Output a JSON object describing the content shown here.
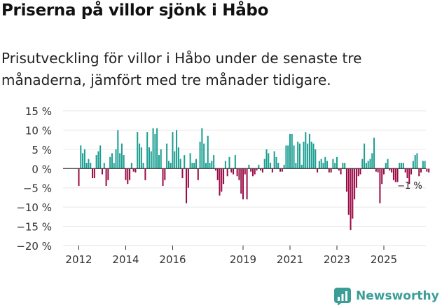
{
  "header": {
    "title": "Priserna på villor sjönk i Håbo",
    "subtitle": "Prisutveckling för villor i Håbo under de senaste tre månaderna, jämfört med tre månader tidigare."
  },
  "brand": {
    "name": "Newsworthy",
    "color": "#3a9e97"
  },
  "colors": {
    "positive": "#1a9e91",
    "negative": "#9b0a46",
    "grid": "#e6e6e6",
    "axis": "#333333"
  },
  "chart_data": {
    "type": "bar",
    "title": "Priserna på villor sjönk i Håbo",
    "xlabel": "",
    "ylabel": "",
    "ylim": [
      -20,
      15
    ],
    "yticks": [
      15,
      10,
      5,
      0,
      -5,
      -10,
      -15,
      -20
    ],
    "ytick_labels": [
      "15 %",
      "10 %",
      "5 %",
      "0 %",
      "−5 %",
      "−10 %",
      "−15 %",
      "−20 %"
    ],
    "x_start": 2012.0,
    "x_step": 0.0833333,
    "xticks": [
      2012,
      2014,
      2016,
      2019,
      2021,
      2023,
      2025
    ],
    "xtick_labels": [
      "2012",
      "2014",
      "2016",
      "2019",
      "2021",
      "2023",
      "2025"
    ],
    "annotation": {
      "text": "−1 %",
      "index": 170
    },
    "values": [
      -4.5,
      6.0,
      4.0,
      5.0,
      1.5,
      2.5,
      1.5,
      -2.5,
      -2.5,
      3.5,
      4.5,
      6.0,
      -1.5,
      1.5,
      -4.5,
      -3.0,
      3.0,
      4.0,
      1.5,
      5.0,
      10.0,
      4.0,
      6.5,
      3.5,
      -3.0,
      -4.0,
      -3.0,
      1.5,
      -0.8,
      -1.0,
      9.5,
      6.5,
      5.5,
      1.5,
      -3.0,
      9.5,
      5.5,
      4.5,
      10.5,
      9.0,
      10.5,
      3.5,
      5.0,
      -4.5,
      -3.0,
      6.5,
      2.0,
      1.5,
      9.5,
      4.5,
      10.0,
      5.5,
      2.5,
      -2.5,
      3.5,
      -9.0,
      -5.0,
      4.0,
      1.5,
      1.5,
      2.5,
      -3.0,
      7.0,
      10.5,
      6.5,
      1.5,
      8.5,
      1.5,
      2.0,
      3.5,
      -0.5,
      -3.0,
      -7.0,
      -6.0,
      -4.0,
      2.0,
      -2.0,
      3.0,
      -1.0,
      -1.5,
      3.5,
      -2.0,
      -3.0,
      -6.5,
      -8.0,
      -1.5,
      -8.0,
      1.0,
      -0.8,
      -2.0,
      -1.5,
      -0.5,
      1.0,
      -0.5,
      -1.0,
      2.5,
      5.0,
      4.0,
      1.5,
      -1.0,
      4.5,
      3.0,
      1.5,
      -0.8,
      -0.8,
      1.0,
      6.0,
      6.0,
      9.0,
      9.0,
      6.0,
      1.5,
      7.0,
      6.5,
      1.0,
      7.0,
      9.5,
      6.5,
      9.0,
      7.0,
      6.5,
      5.0,
      -1.0,
      2.0,
      2.5,
      1.5,
      3.0,
      2.0,
      -1.0,
      -1.0,
      2.5,
      1.5,
      3.0,
      -0.5,
      -1.5,
      1.5,
      1.5,
      -6.0,
      -12.0,
      -16.0,
      -13.0,
      -8.0,
      -5.0,
      -2.0,
      -1.5,
      2.5,
      6.5,
      1.5,
      2.0,
      2.5,
      4.0,
      8.0,
      -0.8,
      -1.0,
      -9.0,
      -4.0,
      -1.5,
      1.5,
      2.5,
      -0.5,
      -1.0,
      -3.0,
      -3.5,
      -3.5,
      1.5,
      1.5,
      1.5,
      -1.0,
      -2.5,
      -4.0,
      -1.5,
      2.0,
      3.5,
      4.0,
      -2.0,
      -1.0,
      2.0,
      2.0,
      -0.8,
      -1.0
    ]
  }
}
